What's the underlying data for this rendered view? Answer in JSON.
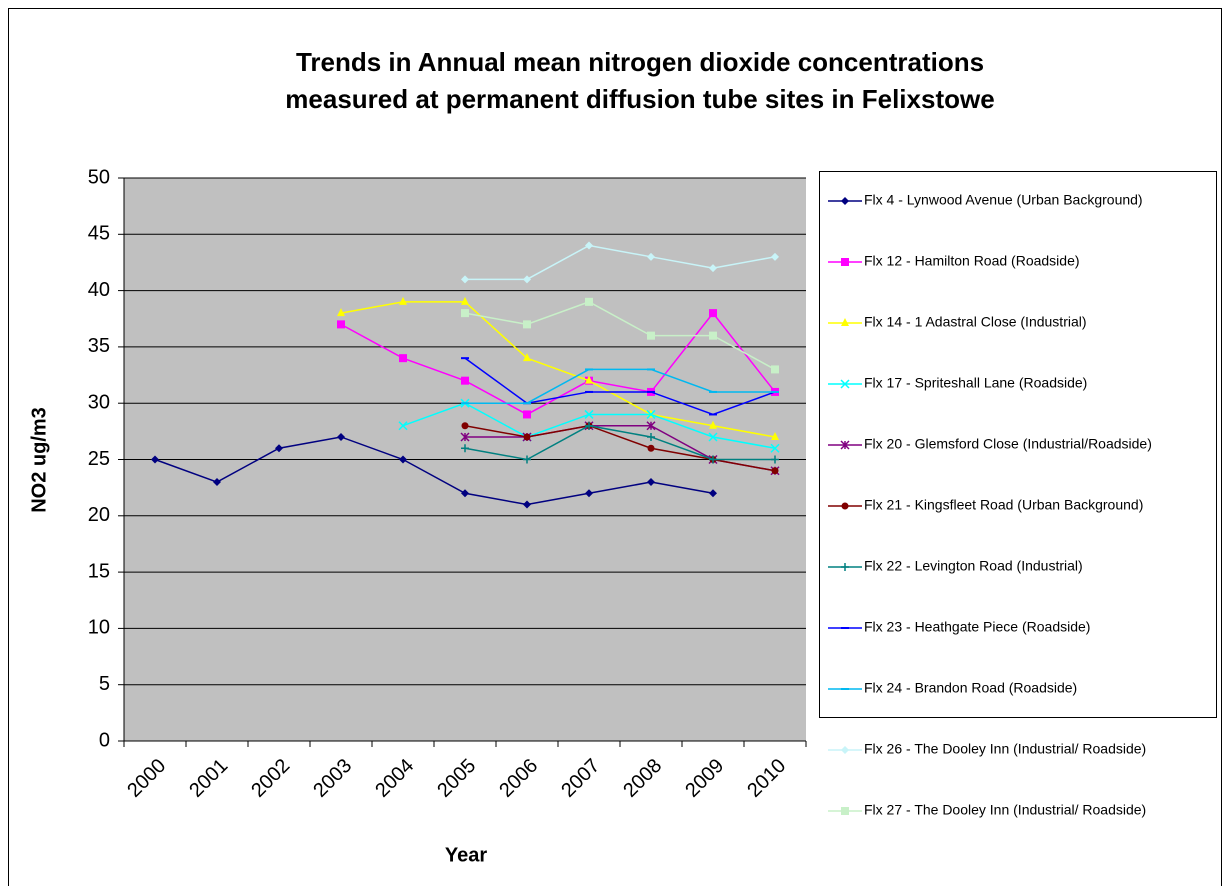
{
  "chart_data": {
    "type": "line",
    "title": [
      "Trends in Annual mean nitrogen dioxide  concentrations",
      "measured at permanent diffusion tube sites in Felixstowe"
    ],
    "x_label": "Year",
    "y_label": "NO2 ug/m3",
    "categories": [
      "2000",
      "2001",
      "2002",
      "2003",
      "2004",
      "2005",
      "2006",
      "2007",
      "2008",
      "2009",
      "2010"
    ],
    "ylim": [
      0,
      50
    ],
    "yticks": [
      0,
      5,
      10,
      15,
      20,
      25,
      30,
      35,
      40,
      45,
      50
    ],
    "grid": true,
    "legend": "right",
    "series": [
      {
        "name": "Flx 4 - Lynwood Avenue (Urban Background)",
        "color": "#000080",
        "marker": "diamond",
        "values": [
          25,
          23,
          26,
          27,
          25,
          22,
          21,
          22,
          23,
          22,
          null
        ]
      },
      {
        "name": "Flx 12 - Hamilton Road (Roadside)",
        "color": "#ff00ff",
        "marker": "square",
        "values": [
          null,
          null,
          null,
          37,
          34,
          32,
          29,
          32,
          31,
          38,
          31
        ]
      },
      {
        "name": "Flx 14 - 1 Adastral Close (Industrial)",
        "color": "#ffff00",
        "marker": "triangle",
        "values": [
          null,
          null,
          null,
          38,
          39,
          39,
          34,
          32,
          29,
          28,
          27
        ]
      },
      {
        "name": "Flx 17 - Spriteshall Lane (Roadside)",
        "color": "#00ffff",
        "marker": "x",
        "values": [
          null,
          null,
          null,
          null,
          28,
          30,
          27,
          29,
          29,
          27,
          26
        ]
      },
      {
        "name": "Flx 20 - Glemsford Close (Industrial/Roadside)",
        "color": "#800080",
        "marker": "star",
        "values": [
          null,
          null,
          null,
          null,
          null,
          27,
          27,
          28,
          28,
          25,
          24
        ]
      },
      {
        "name": "Flx 21 - Kingsfleet Road (Urban Background)",
        "color": "#800000",
        "marker": "circle",
        "values": [
          null,
          null,
          null,
          null,
          null,
          28,
          27,
          28,
          26,
          25,
          24
        ]
      },
      {
        "name": "Flx 22 - Levington Road (Industrial)",
        "color": "#008080",
        "marker": "plus",
        "values": [
          null,
          null,
          null,
          null,
          null,
          26,
          25,
          28,
          27,
          25,
          25
        ]
      },
      {
        "name": "Flx 23 - Heathgate Piece (Roadside)",
        "color": "#0000ff",
        "marker": "dash",
        "values": [
          null,
          null,
          null,
          null,
          null,
          34,
          30,
          31,
          31,
          29,
          31
        ]
      },
      {
        "name": "Flx 24 - Brandon Road (Roadside)",
        "color": "#00b8f0",
        "marker": "dash",
        "values": [
          null,
          null,
          null,
          null,
          null,
          30,
          30,
          33,
          33,
          31,
          31
        ]
      },
      {
        "name": "Flx 26 - The Dooley Inn (Industrial/ Roadside)",
        "color": "#c8f4f8",
        "marker": "diamond",
        "values": [
          null,
          null,
          null,
          null,
          null,
          41,
          41,
          44,
          43,
          42,
          43
        ]
      },
      {
        "name": "Flx 27 - The Dooley Inn (Industrial/ Roadside)",
        "color": "#c8f0c8",
        "marker": "square",
        "values": [
          null,
          null,
          null,
          null,
          null,
          38,
          37,
          39,
          36,
          36,
          33
        ]
      }
    ]
  }
}
